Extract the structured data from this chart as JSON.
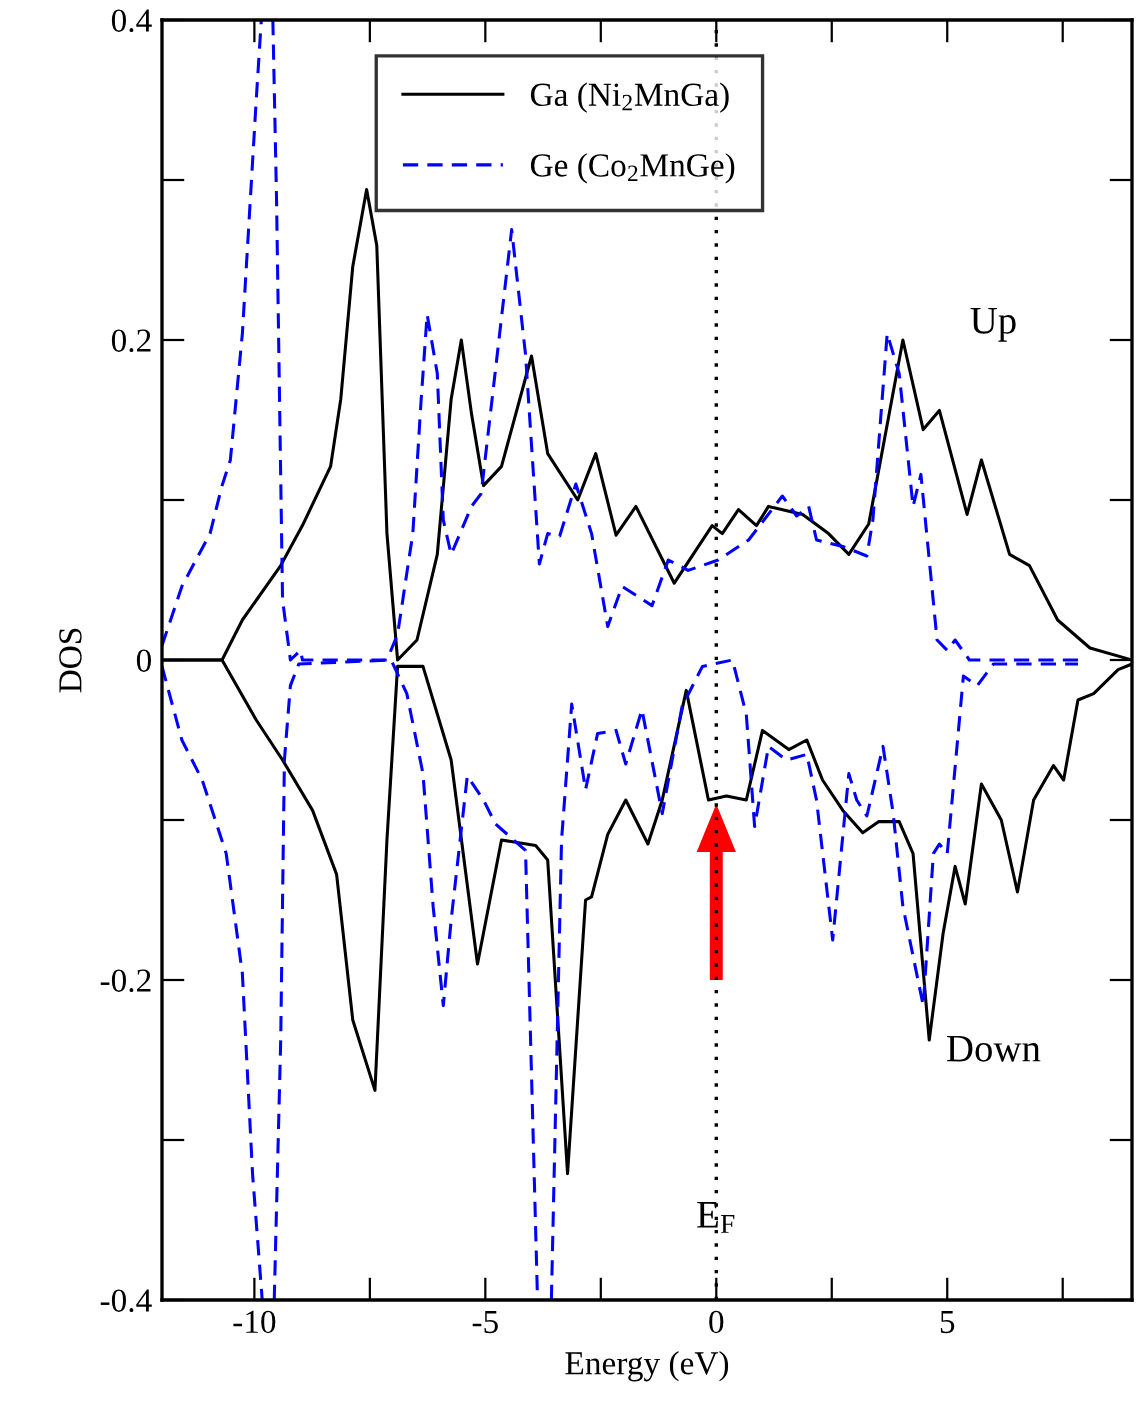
{
  "chart_data": {
    "type": "line",
    "xlabel": "Energy (eV)",
    "ylabel": "DOS",
    "xlim": [
      -12,
      9
    ],
    "ylim": [
      -0.4,
      0.4
    ],
    "xticks": [
      -10,
      {
        "value": -7.5,
        "label": null
      },
      -5,
      {
        "value": -2.5,
        "label": null
      },
      0,
      {
        "value": 2.5,
        "label": null
      },
      5,
      {
        "value": 7.5,
        "label": null
      }
    ],
    "yticks": [
      {
        "value": -0.4,
        "label": "-0.4"
      },
      {
        "value": -0.3,
        "label": null
      },
      {
        "value": -0.2,
        "label": "-0.2"
      },
      {
        "value": -0.1,
        "label": null
      },
      0,
      {
        "value": 0.1,
        "label": null
      },
      0.2,
      {
        "value": 0.3,
        "label": null
      },
      0.4
    ],
    "grid": false,
    "legend": "top",
    "marker": "none",
    "annotations": [
      "Up",
      "Down"
    ],
    "ref_lines": [
      {
        "axis": "x",
        "value": 0,
        "label": "E$_{F}$",
        "color": "#000000",
        "line_style": "dotted"
      }
    ],
    "series": [
      {
        "name": "Ga (Ni$_{2}$MnGa)",
        "color": "#000000",
        "line_style": "solid",
        "x": [
          -12,
          -10.7,
          -10.26,
          -9.43,
          -8.96,
          -8.35,
          -8.13,
          -7.87,
          -7.57,
          -7.35,
          -7.13,
          -6.9,
          -6.48,
          -6.04,
          -5.74,
          -5.52,
          -5.3,
          -5.04,
          -4.65,
          -4.0,
          -3.65,
          -3.0,
          -2.61,
          -2.17,
          -1.74,
          -0.91,
          -0.09,
          0.13,
          0.48,
          0.87,
          1.13,
          1.87,
          2.43,
          2.87,
          3.3,
          4.04,
          4.48,
          4.83,
          5.43,
          5.74,
          6.35,
          6.78,
          7.39,
          8.09,
          9.0
        ],
        "values": [
          0,
          0,
          0.025,
          0.059,
          0.084,
          0.121,
          0.163,
          0.246,
          0.294,
          0.259,
          0.079,
          0.0,
          0.0125,
          0.066,
          0.163,
          0.2,
          0.154,
          0.109,
          0.121,
          0.19,
          0.129,
          0.1,
          0.129,
          0.078,
          0.096,
          0.048,
          0.084,
          0.079,
          0.094,
          0.084,
          0.096,
          0.091,
          0.079,
          0.066,
          0.085,
          0.2,
          0.144,
          0.156,
          0.091,
          0.125,
          0.066,
          0.059,
          0.025,
          0.0075,
          0
        ]
      },
      {
        "color": "#000000",
        "line_style": "solid",
        "x": [
          -12,
          -10.7,
          -9.96,
          -9.39,
          -8.74,
          -8.22,
          -7.87,
          -7.39,
          -7.13,
          -6.9,
          -6.35,
          -5.74,
          -5.17,
          -4.65,
          -3.91,
          -3.65,
          -3.22,
          -2.83,
          -2.7,
          -2.35,
          -1.96,
          -1.48,
          -1.17,
          -0.65,
          -0.17,
          0.22,
          0.65,
          1.0,
          1.57,
          1.96,
          2.3,
          2.74,
          3.17,
          3.52,
          3.96,
          4.26,
          4.61,
          4.91,
          5.17,
          5.39,
          5.74,
          6.17,
          6.52,
          6.87,
          7.3,
          7.52,
          7.83,
          8.17,
          8.7,
          9.0
        ],
        "values": [
          0,
          0,
          -0.0375,
          -0.0625,
          -0.094,
          -0.134,
          -0.225,
          -0.269,
          -0.1125,
          -0.004,
          -0.004,
          -0.0625,
          -0.19,
          -0.1125,
          -0.116,
          -0.125,
          -0.321,
          -0.15,
          -0.148,
          -0.109,
          -0.0875,
          -0.115,
          -0.0875,
          -0.019,
          -0.0875,
          -0.085,
          -0.0875,
          -0.044,
          -0.056,
          -0.05,
          -0.075,
          -0.094,
          -0.108,
          -0.101,
          -0.101,
          -0.121,
          -0.2375,
          -0.171,
          -0.129,
          -0.1525,
          -0.0775,
          -0.1,
          -0.145,
          -0.0875,
          -0.066,
          -0.075,
          -0.025,
          -0.021,
          -0.006,
          -0.0025
        ]
      },
      {
        "name": "Ge (Co$_{2}$MnGe)",
        "color": "#0000ff",
        "line_style": "dashed",
        "x": [
          -12,
          -11.57,
          -10.96,
          -10.7,
          -10.52,
          -10.26,
          -9.96,
          -9.85,
          -9.7,
          -9.6,
          -9.52,
          -9.39,
          -9.22,
          -9.0,
          -8.96,
          -7.13,
          -6.9,
          -6.57,
          -6.39,
          -6.26,
          -6.04,
          -5.91,
          -5.74,
          -5.3,
          -5.09,
          -4.43,
          -4.13,
          -3.83,
          -3.65,
          -3.39,
          -3.04,
          -2.7,
          -2.35,
          -2.04,
          -1.39,
          -1.04,
          -0.61,
          0.04,
          0.7,
          1.43,
          1.74,
          2.0,
          2.17,
          2.74,
          3.26,
          3.39,
          3.7,
          3.96,
          4.26,
          4.43,
          4.78,
          5.0,
          5.17,
          5.48,
          7.83
        ],
        "values": [
          0.009,
          0.046,
          0.079,
          0.109,
          0.125,
          0.204,
          0.35,
          0.4,
          null,
          0.4,
          0.2875,
          0.0375,
          0.0,
          0.006,
          0,
          0,
          0.016,
          0.079,
          0.1625,
          0.216,
          0.179,
          0.0875,
          0.066,
          0.096,
          0.104,
          0.269,
          0.191,
          0.06,
          0.079,
          0.0775,
          0.11,
          0.079,
          0.021,
          0.046,
          0.034,
          0.0625,
          0.056,
          0.0625,
          0.075,
          0.1025,
          0.09,
          0.096,
          0.075,
          0.071,
          0.065,
          0.0875,
          0.204,
          0.179,
          0.096,
          0.116,
          0.0125,
          0.006,
          0.0125,
          0,
          0
        ]
      },
      {
        "color": "#0000ff",
        "line_style": "dashed",
        "x": [
          -12,
          -11.57,
          -11.13,
          -10.61,
          -10.26,
          -10.04,
          -9.83,
          -9.7,
          -9.57,
          -9.43,
          -9.35,
          -9.22,
          -9.04,
          -7.04,
          -6.7,
          -6.35,
          -6.13,
          -5.91,
          -5.74,
          -5.39,
          -5.04,
          -4.78,
          -4.13,
          -3.87,
          -3.7,
          -3.57,
          -3.35,
          -3.13,
          -2.83,
          -2.57,
          -2.17,
          -1.96,
          -1.61,
          -1.17,
          -0.74,
          -0.3,
          0.35,
          0.65,
          0.83,
          1.13,
          1.52,
          1.96,
          2.17,
          2.52,
          2.87,
          3.04,
          3.26,
          3.61,
          3.83,
          4.04,
          4.48,
          4.7,
          4.83,
          5.0,
          5.35,
          5.65,
          6.0,
          7.83
        ],
        "values": [
          -0.004,
          -0.05,
          -0.075,
          -0.121,
          -0.196,
          -0.321,
          -0.4,
          null,
          -0.4,
          -0.2375,
          -0.0625,
          -0.016,
          -0.0025,
          0,
          -0.021,
          -0.071,
          -0.154,
          -0.216,
          -0.1625,
          -0.0725,
          -0.0875,
          -0.1025,
          -0.119,
          -0.4,
          null,
          -0.4,
          -0.1125,
          -0.0275,
          -0.081,
          -0.046,
          -0.044,
          -0.065,
          -0.031,
          -0.096,
          -0.029,
          -0.004,
          0.0,
          -0.034,
          -0.104,
          -0.054,
          -0.0625,
          -0.059,
          -0.0875,
          -0.175,
          -0.071,
          -0.0875,
          -0.0975,
          -0.054,
          -0.096,
          -0.154,
          -0.216,
          -0.121,
          -0.115,
          -0.121,
          -0.01,
          -0.016,
          -0.0025,
          -0.0025
        ]
      }
    ]
  }
}
